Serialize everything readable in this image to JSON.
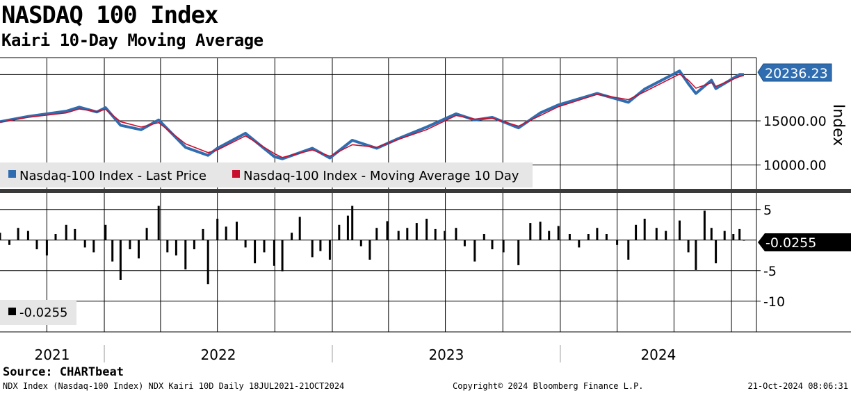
{
  "header": {
    "title": "NASDAQ 100 Index",
    "subtitle": "Kairi 10-Day Moving Average"
  },
  "footer": {
    "source": "Source: CHARTbeat",
    "left": "NDX Index (Nasdaq-100 Index) NDX Kairi 10D  Daily 18JUL2021-21OCT2024",
    "middle": "Copyright© 2024 Bloomberg Finance L.P.",
    "right": "21-Oct-2024 08:06:31"
  },
  "colors": {
    "last_price": "#2f6db0",
    "moving_average": "#c8102e",
    "kairi": "#000000",
    "last_tag_blue": "#2f6db0",
    "last_tag_black": "#000000"
  },
  "chart_data": [
    {
      "type": "line",
      "panel": "upper",
      "ylabel": "Index",
      "yticks": [
        10000,
        15000
      ],
      "ytick_labels": [
        "10000.00",
        "15000.00"
      ],
      "ylim": [
        7300,
        22000
      ],
      "grid": true,
      "legend": "bottom-left",
      "last_value_label": "20236.23",
      "x": [
        "2021-07-18",
        "2021-09-01",
        "2021-11-01",
        "2021-11-22",
        "2021-12-20",
        "2022-01-03",
        "2022-01-27",
        "2022-03-01",
        "2022-03-29",
        "2022-05-11",
        "2022-06-16",
        "2022-07-01",
        "2022-08-15",
        "2022-09-30",
        "2022-10-13",
        "2022-11-30",
        "2022-12-28",
        "2023-02-02",
        "2023-03-13",
        "2023-04-17",
        "2023-06-01",
        "2023-07-18",
        "2023-08-17",
        "2023-09-14",
        "2023-10-26",
        "2023-11-30",
        "2023-12-29",
        "2024-02-29",
        "2024-04-19",
        "2024-05-15",
        "2024-07-10",
        "2024-07-24",
        "2024-08-05",
        "2024-08-30",
        "2024-09-06",
        "2024-10-14",
        "2024-10-21"
      ],
      "series": [
        {
          "name": "Nasdaq-100 Index - Last Price",
          "values": [
            14900,
            15500,
            16100,
            16550,
            16000,
            16500,
            14500,
            14000,
            15100,
            12000,
            11100,
            11900,
            13600,
            10950,
            10700,
            11900,
            10800,
            12800,
            11900,
            13000,
            14300,
            15800,
            15100,
            15400,
            14200,
            15900,
            16800,
            18100,
            17100,
            18600,
            20650,
            19200,
            18100,
            19600,
            18650,
            20250,
            20236
          ]
        },
        {
          "name": "Nasdaq-100 Index - Moving Average 10 Day",
          "values": [
            14850,
            15400,
            15900,
            16350,
            16050,
            16300,
            14900,
            14300,
            14800,
            12400,
            11400,
            11700,
            13300,
            11300,
            10850,
            11700,
            11000,
            12300,
            12000,
            12900,
            14000,
            15600,
            15200,
            15300,
            14400,
            15600,
            16600,
            18000,
            17400,
            18300,
            20300,
            19600,
            18700,
            19300,
            18900,
            20000,
            20140
          ]
        }
      ]
    },
    {
      "type": "bar",
      "panel": "lower",
      "ylabel": "",
      "yticks": [
        -10,
        -5,
        5
      ],
      "ytick_labels": [
        "-10",
        "-5",
        "5"
      ],
      "ylim": [
        -14.8,
        7.7
      ],
      "grid": true,
      "legend": "bottom-left",
      "last_value_label": "-0.0255",
      "series": [
        {
          "name": "-0.0255",
          "x": [
            "2021-07-18",
            "2021-08-02",
            "2021-08-16",
            "2021-09-01",
            "2021-09-15",
            "2021-10-01",
            "2021-10-15",
            "2021-11-01",
            "2021-11-15",
            "2021-12-01",
            "2021-12-15",
            "2022-01-03",
            "2022-01-14",
            "2022-01-27",
            "2022-02-11",
            "2022-02-25",
            "2022-03-10",
            "2022-03-29",
            "2022-04-12",
            "2022-04-26",
            "2022-05-11",
            "2022-05-25",
            "2022-06-08",
            "2022-06-16",
            "2022-07-01",
            "2022-07-15",
            "2022-08-01",
            "2022-08-15",
            "2022-08-30",
            "2022-09-14",
            "2022-09-30",
            "2022-10-13",
            "2022-10-28",
            "2022-11-10",
            "2022-11-30",
            "2022-12-13",
            "2022-12-28",
            "2023-01-12",
            "2023-01-26",
            "2023-02-02",
            "2023-02-16",
            "2023-03-02",
            "2023-03-13",
            "2023-03-30",
            "2023-04-17",
            "2023-05-01",
            "2023-05-16",
            "2023-06-01",
            "2023-06-15",
            "2023-06-30",
            "2023-07-18",
            "2023-08-01",
            "2023-08-17",
            "2023-09-01",
            "2023-09-14",
            "2023-10-02",
            "2023-10-26",
            "2023-11-14",
            "2023-11-30",
            "2023-12-14",
            "2023-12-29",
            "2024-01-16",
            "2024-01-31",
            "2024-02-15",
            "2024-02-29",
            "2024-03-15",
            "2024-04-01",
            "2024-04-19",
            "2024-05-01",
            "2024-05-15",
            "2024-06-03",
            "2024-06-18",
            "2024-07-10",
            "2024-07-24",
            "2024-08-05",
            "2024-08-19",
            "2024-08-30",
            "2024-09-06",
            "2024-09-20",
            "2024-10-04",
            "2024-10-14",
            "2024-10-21"
          ],
          "values": [
            1.2,
            -0.8,
            2.0,
            1.5,
            -1.5,
            -2.5,
            1.0,
            2.5,
            1.8,
            -1.2,
            -2.0,
            2.5,
            -3.5,
            -6.5,
            -1.5,
            -3.0,
            2.0,
            5.6,
            -2.0,
            -2.5,
            -4.8,
            -1.5,
            1.8,
            -7.2,
            3.5,
            2.2,
            3.0,
            -1.2,
            -3.8,
            -2.0,
            -4.2,
            -5.1,
            1.2,
            3.8,
            -2.8,
            -1.8,
            -3.2,
            2.5,
            4.0,
            5.6,
            -1.0,
            -3.2,
            2.0,
            3.1,
            1.5,
            2.0,
            2.8,
            3.5,
            1.8,
            1.5,
            2.0,
            -1.0,
            -3.5,
            1.0,
            -1.5,
            -2.0,
            -4.1,
            2.8,
            3.0,
            1.5,
            2.3,
            1.0,
            -1.2,
            1.0,
            2.0,
            1.0,
            -0.8,
            -3.2,
            2.5,
            3.5,
            2.0,
            1.5,
            3.2,
            -2.0,
            -4.9,
            4.8,
            2.0,
            -3.8,
            1.5,
            1.0,
            1.8,
            -0.0255
          ]
        }
      ]
    }
  ],
  "x_axis": {
    "year_labels": [
      "2021",
      "2022",
      "2023",
      "2024"
    ]
  }
}
